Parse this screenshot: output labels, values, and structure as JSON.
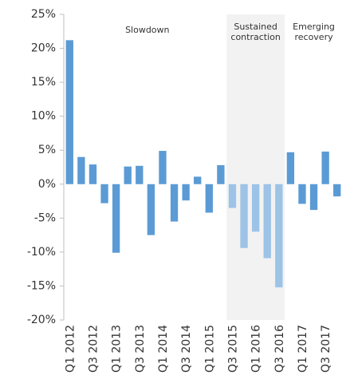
{
  "chart_data": {
    "type": "bar",
    "categories": [
      "Q1 2012",
      null,
      "Q3 2012",
      null,
      "Q1 2013",
      null,
      "Q3 2013",
      null,
      "Q1 2014",
      null,
      "Q3 2014",
      null,
      "Q1 2015",
      null,
      "Q3 2015",
      null,
      "Q1 2016",
      null,
      "Q3 2016",
      null,
      "Q1 2017",
      null,
      "Q3 2017",
      null
    ],
    "values": [
      21.2,
      4.0,
      2.9,
      -2.8,
      -10.1,
      2.6,
      2.7,
      -7.5,
      4.9,
      -5.5,
      -2.4,
      1.1,
      -4.2,
      2.8,
      -3.5,
      -9.4,
      -7.0,
      -10.9,
      -15.2,
      4.7,
      -2.9,
      -3.8,
      4.8,
      -1.8
    ],
    "colors": [
      "#5b9bd5",
      "#5b9bd5",
      "#5b9bd5",
      "#5b9bd5",
      "#5b9bd5",
      "#5b9bd5",
      "#5b9bd5",
      "#5b9bd5",
      "#5b9bd5",
      "#5b9bd5",
      "#5b9bd5",
      "#5b9bd5",
      "#5b9bd5",
      "#5b9bd5",
      "#9dc3e6",
      "#9dc3e6",
      "#9dc3e6",
      "#9dc3e6",
      "#9dc3e6",
      "#5b9bd5",
      "#5b9bd5",
      "#5b9bd5",
      "#5b9bd5",
      "#5b9bd5"
    ],
    "ylim": [
      -20,
      25
    ],
    "yticks": [
      {
        "value": -20,
        "label": "-20%"
      },
      {
        "value": -15,
        "label": "-15%"
      },
      {
        "value": -10,
        "label": "-10%"
      },
      {
        "value": -5,
        "label": "-5%"
      },
      {
        "value": 0,
        "label": "0%"
      },
      {
        "value": 5,
        "label": "5%"
      },
      {
        "value": 10,
        "label": "10%"
      },
      {
        "value": 15,
        "label": "15%"
      },
      {
        "value": 20,
        "label": "20%"
      },
      {
        "value": 25,
        "label": "25%"
      }
    ],
    "shaded_range": [
      "Q3 2015",
      "Q3 2016"
    ],
    "shade_color": "#f2f2f2",
    "annotations": [
      {
        "lines": [
          "Slowdown"
        ],
        "from": "Q1 2012",
        "to": "Q1 2015"
      },
      {
        "lines": [
          "Sustained",
          "contraction"
        ],
        "from": "Q3 2015",
        "to": "Q3 2016"
      },
      {
        "lines": [
          "Emerging",
          "recovery"
        ],
        "from": "Q1 2017",
        "to": "Q3 2017"
      }
    ],
    "grid": false
  }
}
